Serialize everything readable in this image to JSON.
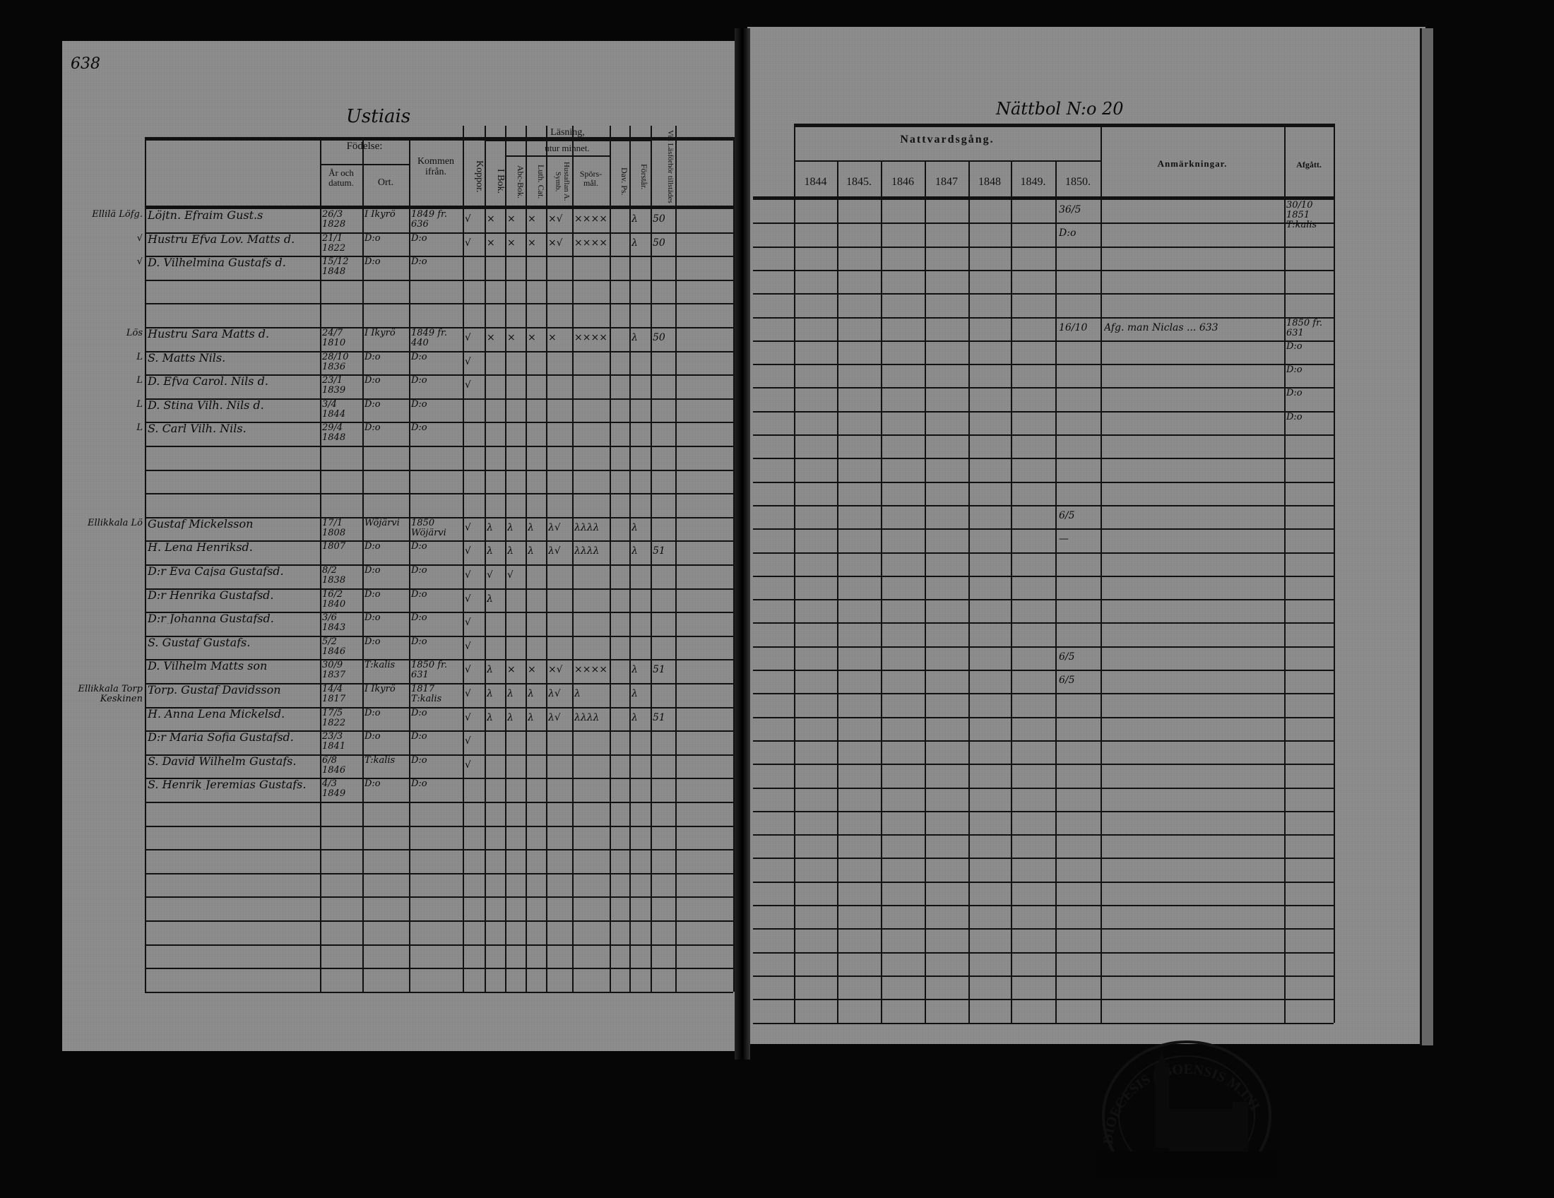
{
  "page_number": "638",
  "left_title": "Ustiais",
  "right_title": "Nättbol N:o 20",
  "left_table": {
    "headers": {
      "fodelse": "Födelse:",
      "ar_och_datum": "År och datum.",
      "ort": "Ort.",
      "kommen_ifran": "Kommen ifrån.",
      "koppor": "Koppor.",
      "lasning": "Läsning,",
      "i_bok": "I Bok.",
      "utur_minnet": "utur minnet.",
      "abe_bok": "Abc-Bok.",
      "luth_cat": "Luth. Cat.",
      "hustaflan": "Hustaflan A. Symb.",
      "sporsmal": "Spörs-mål.",
      "dav_ps": "Dav. Ps.",
      "forstar": "Förstår.",
      "vid_lasforhor": "Vid Läsförhör tillstädes"
    },
    "rows": [
      {
        "margin": "Ellilä Löfg.",
        "name": "Löjtn. Efraim Gust.s",
        "date": "26/3 1828",
        "ort": "I Ikyrö",
        "kommen": "1849 fr. 636",
        "kopp": "√",
        "ibok": "×",
        "abe": "×",
        "luth": "×",
        "hust": "×√",
        "spors": "××××",
        "dav": "",
        "forsl": "λ",
        "vid": "50"
      },
      {
        "margin": "√",
        "name": "Hustru Efva Lov. Matts d.",
        "date": "21/1 1822",
        "ort": "D:o",
        "kommen": "D:o",
        "kopp": "√",
        "ibok": "×",
        "abe": "×",
        "luth": "×",
        "hust": "×√",
        "spors": "××××",
        "dav": "",
        "forsl": "λ",
        "vid": "50"
      },
      {
        "margin": "√",
        "name": "D. Vilhelmina Gustafs d.",
        "date": "15/12 1848",
        "ort": "D:o",
        "kommen": "D:o"
      },
      {},
      {},
      {
        "margin": "Lös",
        "name": "Hustru Sara Matts d.",
        "date": "24/7 1810",
        "ort": "I Ikyrö",
        "kommen": "1849 fr. 440",
        "kopp": "√",
        "ibok": "×",
        "abe": "×",
        "luth": "×",
        "hust": "×",
        "spors": "××××",
        "forsl": "λ",
        "vid": "50"
      },
      {
        "margin": "L",
        "name": "S. Matts Nils.",
        "date": "28/10 1836",
        "ort": "D:o",
        "kommen": "D:o",
        "kopp": "√"
      },
      {
        "margin": "L",
        "name": "D. Efva Carol. Nils d.",
        "date": "23/1 1839",
        "ort": "D:o",
        "kommen": "D:o",
        "kopp": "√"
      },
      {
        "margin": "L",
        "name": "D. Stina Vilh. Nils d.",
        "date": "3/4 1844",
        "ort": "D:o",
        "kommen": "D:o"
      },
      {
        "margin": "L",
        "name": "S. Carl Vilh. Nils.",
        "date": "29/4 1848",
        "ort": "D:o",
        "kommen": "D:o"
      },
      {},
      {},
      {},
      {
        "margin": "Ellikkala Lö",
        "name": "Gustaf Mickelsson",
        "date": "17/1 1808",
        "ort": "Wöjärvi",
        "kommen": "1850 Wöjärvi",
        "kopp": "√",
        "ibok": "λ",
        "abe": "λ",
        "luth": "λ",
        "hust": "λ√",
        "spors": "λλλλ",
        "forsl": "λ"
      },
      {
        "name": "H. Lena Henriksd.",
        "date": "1807",
        "ort": "D:o",
        "kommen": "D:o",
        "kopp": "√",
        "ibok": "λ",
        "abe": "λ",
        "luth": "λ",
        "hust": "λ√",
        "spors": "λλλλ",
        "forsl": "λ",
        "vid": "51"
      },
      {
        "name": "D:r Eva Cajsa Gustafsd.",
        "date": "8/2 1838",
        "ort": "D:o",
        "kommen": "D:o",
        "kopp": "√",
        "ibok": "√",
        "abe": "√"
      },
      {
        "name": "D:r Henrika Gustafsd.",
        "date": "16/2 1840",
        "ort": "D:o",
        "kommen": "D:o",
        "kopp": "√",
        "ibok": "λ"
      },
      {
        "name": "D:r Johanna Gustafsd.",
        "date": "3/6 1843",
        "ort": "D:o",
        "kommen": "D:o",
        "kopp": "√"
      },
      {
        "name": "S. Gustaf Gustafs.",
        "date": "5/2 1846",
        "ort": "D:o",
        "kommen": "D:o",
        "kopp": "√"
      },
      {
        "name": "D. Vilhelm Matts son",
        "date": "30/9 1837",
        "ort": "T:kalis",
        "kommen": "1850 fr. 631",
        "kopp": "√",
        "ibok": "λ",
        "abe": "×",
        "luth": "×",
        "hust": "×√",
        "spors": "××××",
        "forsl": "λ",
        "vid": "51"
      },
      {
        "margin": "Ellikkala Torp Keskinen",
        "name": "Torp. Gustaf Davidsson",
        "date": "14/4 1817",
        "ort": "I Ikyrö",
        "kommen": "1817 T:kalis",
        "kopp": "√",
        "ibok": "λ",
        "abe": "λ",
        "luth": "λ",
        "hust": "λ√",
        "spors": "λ",
        "forsl": "λ"
      },
      {
        "name": "H. Anna Lena Mickelsd.",
        "date": "17/5 1822",
        "ort": "D:o",
        "kommen": "D:o",
        "kopp": "√",
        "ibok": "λ",
        "abe": "λ",
        "luth": "λ",
        "hust": "λ√",
        "spors": "λλλλ",
        "forsl": "λ",
        "vid": "51"
      },
      {
        "name": "D:r Maria Sofia Gustafsd.",
        "date": "23/3 1841",
        "ort": "D:o",
        "kommen": "D:o",
        "kopp": "√"
      },
      {
        "name": "S. David Wilhelm Gustafs.",
        "date": "6/8 1846",
        "ort": "T:kalis",
        "kommen": "D:o",
        "kopp": "√"
      },
      {
        "name": "S. Henrik Jeremias Gustafs.",
        "date": "4/3 1849",
        "ort": "D:o",
        "kommen": "D:o"
      },
      {},
      {},
      {},
      {},
      {},
      {},
      {},
      {}
    ]
  },
  "right_table": {
    "headers": {
      "nattvardsgang": "Nattvardsgång.",
      "years": [
        "1844",
        "1845.",
        "1846",
        "1847",
        "1848",
        "1849.",
        "1850."
      ],
      "anmarkningar": "Anmärkningar.",
      "afgatt": "Afgått."
    },
    "rows": [
      {
        "y1850": "36/5",
        "afgatt": "30/10 1851 T:kalis"
      },
      {
        "y1850": "D:o"
      },
      {},
      {},
      {},
      {
        "y1850": "16/10",
        "note": "Afg. man Niclas ... 633",
        "afgatt": "1850 fr. 631"
      },
      {
        "afgatt": "D:o"
      },
      {
        "afgatt": "D:o"
      },
      {
        "afgatt": "D:o"
      },
      {
        "afgatt": "D:o"
      },
      {},
      {},
      {},
      {
        "y1850": "6/5"
      },
      {
        "y1850": "—"
      },
      {},
      {},
      {},
      {},
      {
        "y1850": "6/5"
      },
      {
        "y1850": "6/5"
      },
      {},
      {},
      {},
      {},
      {},
      {},
      {},
      {},
      {},
      {},
      {},
      {},
      {},
      {}
    ]
  },
  "stamp": {
    "text": "DIOECESIS ABOENSIS M.INI"
  },
  "colors": {
    "paper": "#8b8b8b",
    "ink": "#111111",
    "background": "#060606"
  }
}
